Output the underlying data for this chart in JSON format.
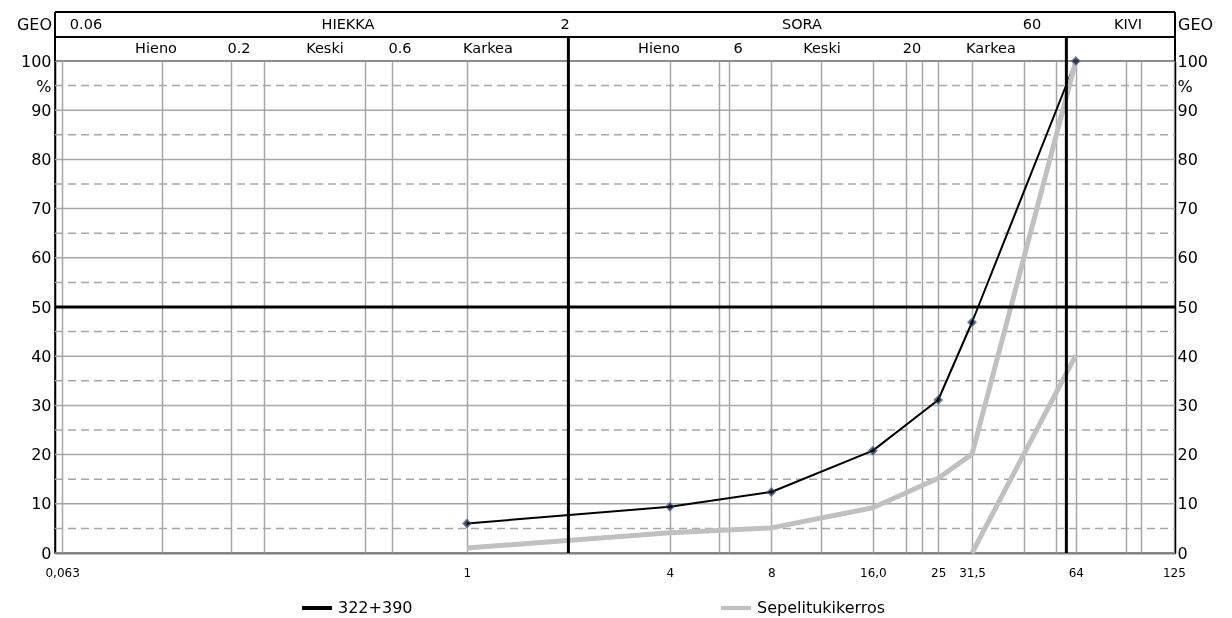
{
  "chart_data": {
    "type": "line",
    "log": "x",
    "grid": true,
    "legend": "bottom",
    "ylabel": "%",
    "y2label": "%",
    "xlim": [
      0.06,
      126
    ],
    "xticks": [
      {
        "value": 0.063,
        "label": "0,063"
      },
      {
        "value": 0.125,
        "label": null
      },
      {
        "value": 0.2,
        "label": null
      },
      {
        "value": 0.25,
        "label": null
      },
      {
        "value": 0.5,
        "label": null
      },
      {
        "value": 0.6,
        "label": null
      },
      1,
      4,
      {
        "value": 5.6,
        "label": null
      },
      {
        "value": 6,
        "label": null
      },
      8,
      {
        "value": 11.2,
        "label": null
      },
      {
        "value": 16,
        "label": "16,0"
      },
      {
        "value": 20,
        "label": null
      },
      {
        "value": 22.4,
        "label": null
      },
      25,
      {
        "value": 31.5,
        "label": "31,5"
      },
      {
        "value": 45,
        "label": null
      },
      {
        "value": 56,
        "label": null
      },
      64,
      {
        "value": 90,
        "label": null
      },
      {
        "value": 100,
        "label": null
      },
      125
    ],
    "ylim": [
      0,
      100
    ],
    "yticks": [
      0,
      {
        "value": 5,
        "label": null
      },
      10,
      {
        "value": 15,
        "label": null
      },
      20,
      {
        "value": 25,
        "label": null
      },
      30,
      {
        "value": 35,
        "label": null
      },
      40,
      {
        "value": 45,
        "label": null
      },
      50,
      {
        "value": 55,
        "label": null
      },
      60,
      {
        "value": 65,
        "label": null
      },
      70,
      {
        "value": 75,
        "label": null
      },
      80,
      {
        "value": 85,
        "label": null
      },
      90,
      {
        "value": 95,
        "label": null
      },
      100
    ],
    "y2lim": [
      0,
      100
    ],
    "y2ticks": [
      0,
      {
        "value": 5,
        "label": null
      },
      10,
      {
        "value": 15,
        "label": null
      },
      20,
      {
        "value": 25,
        "label": null
      },
      30,
      {
        "value": 35,
        "label": null
      },
      40,
      {
        "value": 45,
        "label": null
      },
      50,
      {
        "value": 55,
        "label": null
      },
      60,
      {
        "value": 65,
        "label": null
      },
      70,
      {
        "value": 75,
        "label": null
      },
      80,
      {
        "value": 85,
        "label": null
      },
      90,
      {
        "value": 95,
        "label": null
      },
      100
    ],
    "ref_lines": [
      {
        "axis": "x",
        "value": 2,
        "color": "#000000"
      },
      {
        "axis": "x",
        "value": 60,
        "color": "#000000"
      },
      {
        "axis": "y",
        "value": 50,
        "color": "#000000"
      }
    ],
    "annotations": [
      "GEO",
      "0.06",
      "HIEKKA",
      "2",
      "SORA",
      "60",
      "KIVI",
      "GEO",
      "Hieno",
      "0.2",
      "Keski",
      "0.6",
      "Karkea",
      "Hieno",
      "6",
      "Keski",
      "20",
      "Karkea"
    ],
    "series": [
      {
        "name": "322+390",
        "color": "#000000",
        "marker": "diamond",
        "x": [
          1,
          4,
          8,
          16,
          25,
          31.5,
          64
        ],
        "values": [
          6,
          9.4,
          12.4,
          20.8,
          31.1,
          46.9,
          100
        ]
      },
      {
        "name": "Sepelitukikerros",
        "color": "#c0c0c0",
        "x": [
          1,
          4,
          8,
          16,
          25,
          31.5,
          64
        ],
        "values": [
          1,
          4.1,
          5.1,
          9.2,
          15.2,
          20.1,
          100
        ]
      },
      {
        "color": "#c0c0c0",
        "x": [
          31.5,
          64
        ],
        "values": [
          0,
          40.2
        ]
      }
    ]
  }
}
